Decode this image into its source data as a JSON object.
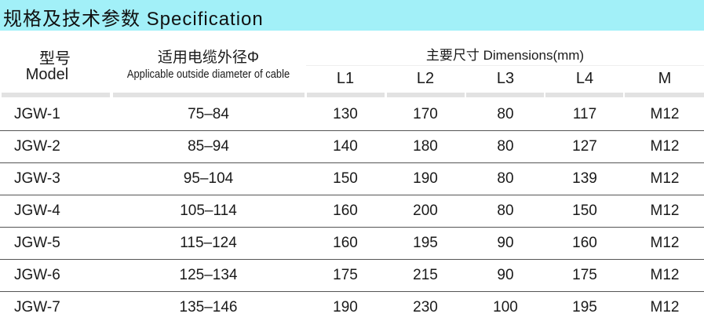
{
  "title": "规格及技术参数  Specification",
  "header": {
    "model_cn": "型号",
    "model_en": "Model",
    "diameter_cn": "适用电缆外径Φ",
    "diameter_en": "Applicable outside diameter of cable",
    "dimensions": "主要尺寸  Dimensions(mm)",
    "columns": [
      "L1",
      "L2",
      "L3",
      "L4",
      "M"
    ]
  },
  "rows": [
    [
      "JGW-1",
      "75-84",
      "130",
      "170",
      "80",
      "117",
      "M12"
    ],
    [
      "JGW-2",
      "85-94",
      "140",
      "180",
      "80",
      "127",
      "M12"
    ],
    [
      "JGW-3",
      "95-104",
      "150",
      "190",
      "80",
      "139",
      "M12"
    ],
    [
      "JGW-4",
      "105-114",
      "160",
      "200",
      "80",
      "150",
      "M12"
    ],
    [
      "JGW-5",
      "115-124",
      "160",
      "195",
      "90",
      "160",
      "M12"
    ],
    [
      "JGW-6",
      "125-134",
      "175",
      "215",
      "90",
      "175",
      "M12"
    ],
    [
      "JGW-7",
      "135-146",
      "190",
      "230",
      "100",
      "195",
      "M12"
    ]
  ],
  "colors": {
    "title_bg": "#a2f0f8",
    "header_bar": "#e2e2e2",
    "row_line": "#555555"
  }
}
